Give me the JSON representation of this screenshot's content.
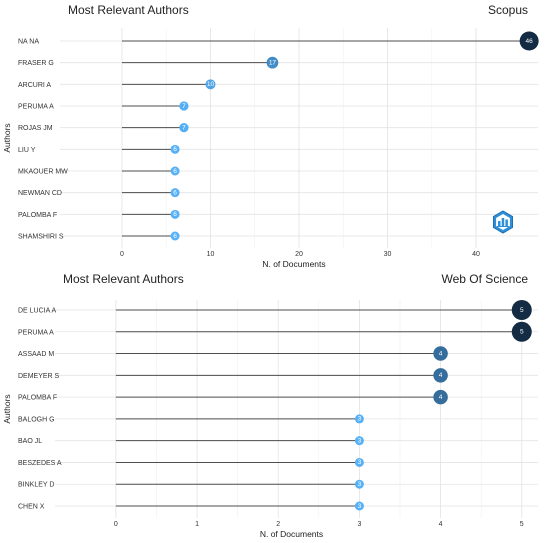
{
  "chart_data": [
    {
      "type": "lollipop",
      "title": "Most Relevant Authors",
      "source": "Scopus",
      "xlabel": "N. of Documents",
      "ylabel": "Authors",
      "xlim": [
        -7,
        47
      ],
      "xticks": [
        0,
        10,
        20,
        30,
        40
      ],
      "grid": true,
      "categories": [
        "NA NA",
        "FRASER G",
        "ARCURI A",
        "PERUMA A",
        "ROJAS JM",
        "LIU Y",
        "MKAOUER MW",
        "NEWMAN CD",
        "PALOMBA F",
        "SHAMSHIRI S"
      ],
      "values": [
        46,
        17,
        10,
        7,
        7,
        6,
        6,
        6,
        6,
        6
      ],
      "logo": "scopus-hexagon-logo"
    },
    {
      "type": "lollipop",
      "title": "Most Relevant Authors",
      "source": "Web Of Science",
      "xlabel": "N. of Documents",
      "ylabel": "Authors",
      "xlim": [
        -0.75,
        5.2
      ],
      "xticks": [
        0,
        1,
        2,
        3,
        4,
        5
      ],
      "grid": true,
      "categories": [
        "DE LUCIA A",
        "PERUMA A",
        "ASSAAD M",
        "DEMEYER S",
        "PALOMBA F",
        "BALOGH G",
        "BAO JL",
        "BESZEDES A",
        "BINKLEY D",
        "CHEN X"
      ],
      "values": [
        5,
        5,
        4,
        4,
        4,
        3,
        3,
        3,
        3,
        3
      ]
    }
  ],
  "colors": {
    "low": "#56b1f7",
    "high": "#132b43"
  }
}
